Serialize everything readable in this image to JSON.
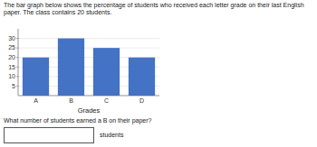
{
  "chart_data": {
    "type": "bar",
    "title": "The bar graph below shows the percentage of students who received each letter grade on their last English",
    "subtitle": "paper. The class contains 20 students.",
    "categories": [
      "A",
      "B",
      "C",
      "D"
    ],
    "values": [
      20,
      30,
      25,
      20
    ],
    "color": "#4472C4",
    "xlabel": "Grades",
    "ylim": [
      0,
      35
    ],
    "yticks": [
      5,
      10,
      15,
      20,
      25,
      30
    ],
    "grid": true,
    "annotations": [
      "What number of students earned a B on their paper?",
      "students"
    ]
  }
}
